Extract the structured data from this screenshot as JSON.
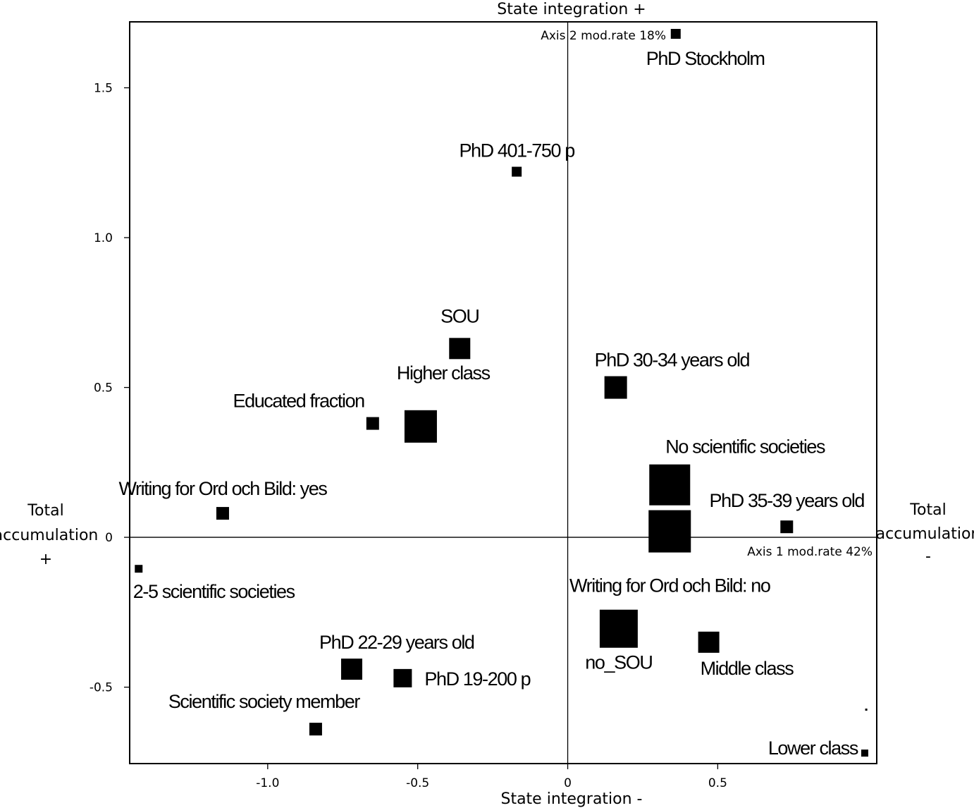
{
  "chart_data": {
    "type": "scatter",
    "title": "",
    "top_axis_label": "State integration +",
    "bottom_axis_label": "State integration -",
    "left_axis_label": [
      "Total",
      "accumulation",
      "+"
    ],
    "right_axis_label": [
      "Total",
      "accumulation",
      "-"
    ],
    "axis1_label": "Axis 1 mod.rate 42%",
    "axis2_label": "Axis 2 mod.rate 18%",
    "xlim": [
      -1.46,
      1.03
    ],
    "ylim": [
      -0.755,
      1.72
    ],
    "x_ticks": [
      -1.0,
      -0.5,
      0.0,
      0.5
    ],
    "x_tick_labels": [
      "-1.0",
      "-0.5",
      "0",
      "0.5"
    ],
    "y_ticks": [
      -0.5,
      0.0,
      0.5,
      1.0,
      1.5
    ],
    "y_tick_labels": [
      "-0.5",
      "0",
      "0.5",
      "1.0",
      "1.5"
    ],
    "grid": false,
    "points": [
      {
        "label": "PhD Stockholm",
        "x": 0.36,
        "y": 1.68,
        "size": 14,
        "anchor": "below-right"
      },
      {
        "label": "PhD 401-750 p",
        "x": -0.17,
        "y": 1.22,
        "size": 14,
        "anchor": "above"
      },
      {
        "label": "SOU",
        "x": -0.36,
        "y": 0.63,
        "size": 30,
        "anchor": "above"
      },
      {
        "label": "Higher class",
        "x": -0.49,
        "y": 0.37,
        "size": 46,
        "anchor": "above-right"
      },
      {
        "label": "Educated fraction",
        "x": -0.65,
        "y": 0.38,
        "size": 18,
        "anchor": "above-left"
      },
      {
        "label": "PhD 30-34 years old",
        "x": 0.16,
        "y": 0.5,
        "size": 32,
        "anchor": "above-right"
      },
      {
        "label": "No scientific societies",
        "x": 0.34,
        "y": 0.175,
        "size": 58,
        "anchor": "above-right"
      },
      {
        "label": "PhD 35-39 years old",
        "x": 0.73,
        "y": 0.035,
        "size": 18,
        "anchor": "above"
      },
      {
        "label": "Writing for Ord och Bild: yes",
        "x": -1.15,
        "y": 0.08,
        "size": 18,
        "anchor": "above"
      },
      {
        "label": "Writing for Ord och Bild: no",
        "x": 0.34,
        "y": 0.02,
        "size": 60,
        "anchor": "below"
      },
      {
        "label": "2-5 scientific societies",
        "x": -1.43,
        "y": -0.105,
        "size": 11,
        "anchor": "below-right"
      },
      {
        "label": "no_SOU",
        "x": 0.17,
        "y": -0.305,
        "size": 54,
        "anchor": "below"
      },
      {
        "label": "Middle class",
        "x": 0.47,
        "y": -0.35,
        "size": 30,
        "anchor": "below-right"
      },
      {
        "label": "PhD 22-29 years old",
        "x": -0.72,
        "y": -0.44,
        "size": 30,
        "anchor": "above-right"
      },
      {
        "label": "PhD 19-200 p",
        "x": -0.55,
        "y": -0.47,
        "size": 26,
        "anchor": "right"
      },
      {
        "label": "Scientific society member",
        "x": -0.84,
        "y": -0.64,
        "size": 18,
        "anchor": "above-left"
      },
      {
        "label": "",
        "x": 0.995,
        "y": -0.575,
        "size": 3,
        "anchor": "none"
      },
      {
        "label": "Lower class",
        "x": 0.99,
        "y": -0.72,
        "size": 10,
        "anchor": "left"
      }
    ]
  }
}
